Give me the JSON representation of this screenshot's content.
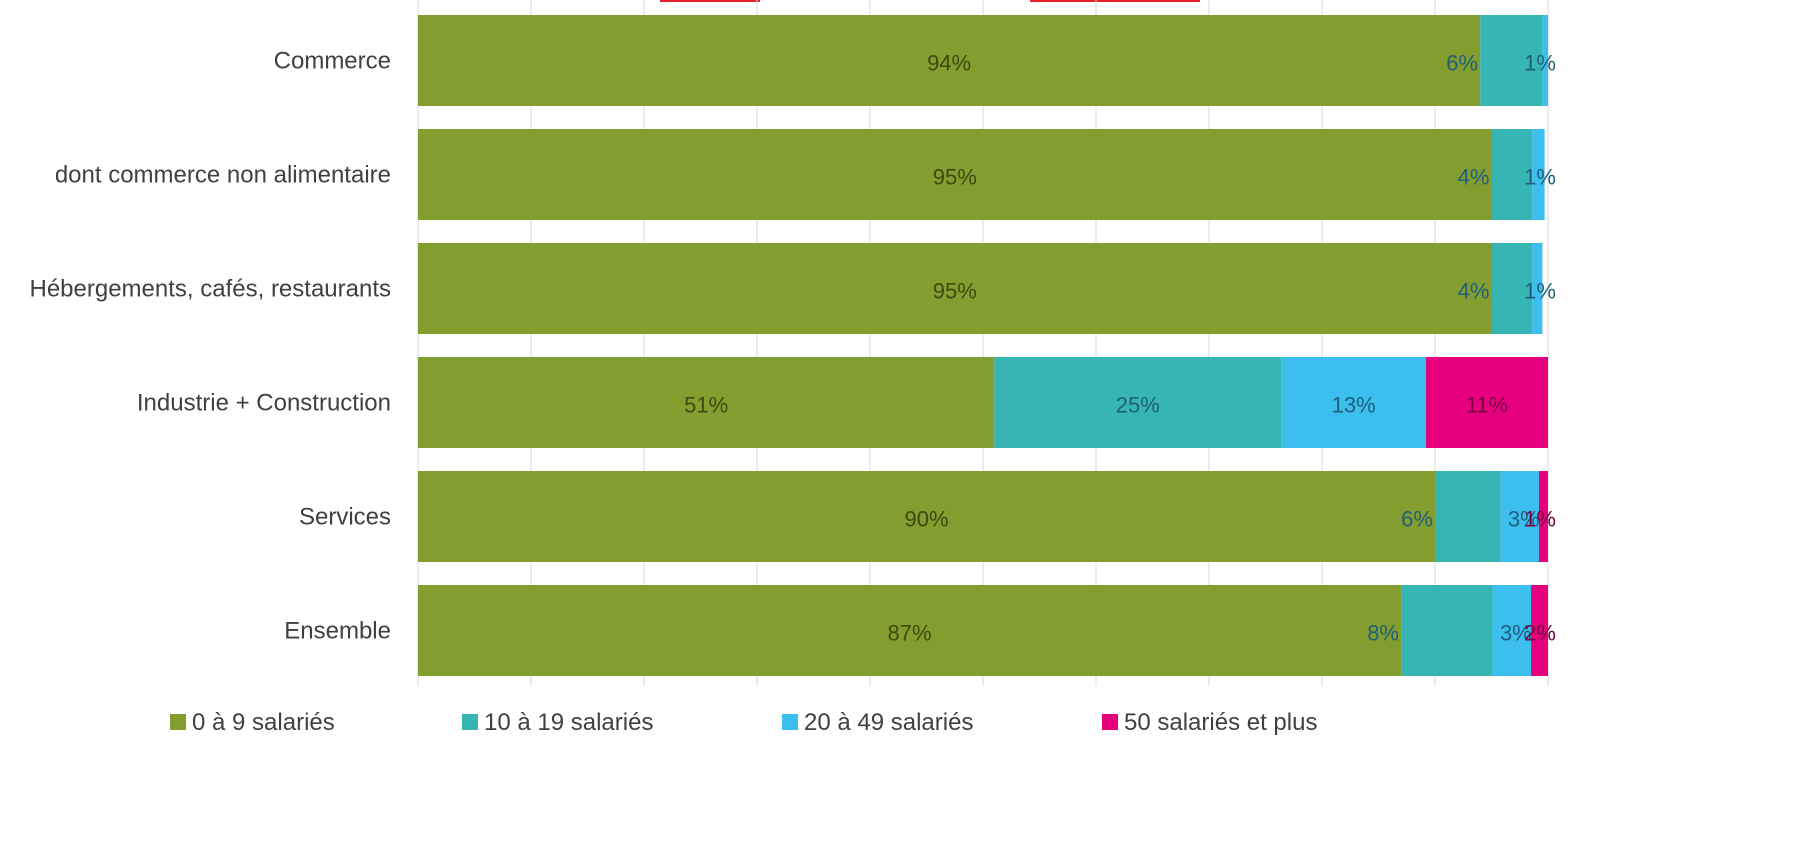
{
  "chart_data": {
    "type": "bar",
    "orientation": "horizontal",
    "stacked": true,
    "categories": [
      "Commerce",
      "dont commerce non alimentaire",
      "Hébergements, cafés, restaurants",
      "Industrie + Construction",
      "Services",
      "Ensemble"
    ],
    "series": [
      {
        "name": "0 à 9 salariés",
        "color": "#839e2e",
        "values": [
          94,
          95,
          95,
          51,
          90,
          87
        ],
        "labels": [
          "94%",
          "95%",
          "95%",
          "51%",
          "90%",
          "87%"
        ]
      },
      {
        "name": "10 à 19 salariés",
        "color": "#37b5b5",
        "values": [
          5.5,
          3.6,
          3.6,
          25.4,
          5.8,
          8.1
        ],
        "labels": [
          "6%",
          "4%",
          "4%",
          "25%",
          "6%",
          "8%"
        ]
      },
      {
        "name": "20 à 49 salariés",
        "color": "#3bbfee",
        "values": [
          0.9,
          1.1,
          0.9,
          12.8,
          3.4,
          3.4
        ],
        "labels": [
          "1%",
          "1%",
          "1%",
          "13%",
          "3%",
          "3%"
        ]
      },
      {
        "name": "50 salariés et plus",
        "color": "#e6007e",
        "values": [
          0,
          0,
          0,
          10.8,
          1.2,
          2.0
        ],
        "labels": [
          "",
          "",
          "",
          "11%",
          "1%",
          "2%"
        ]
      }
    ],
    "xlim": [
      0,
      100
    ],
    "grid": true,
    "legend_position": "bottom"
  }
}
